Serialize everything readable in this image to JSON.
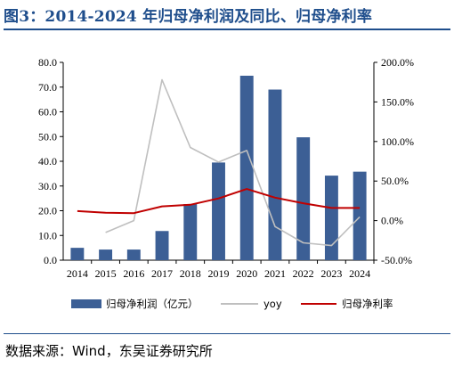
{
  "figure": {
    "title": "图3：2014-2024 年归母净利润及同比、归母净利率",
    "source": "数据来源：Wind，东吴证券研究所"
  },
  "colors": {
    "bar": "#3c5f95",
    "yoy": "#bfbfbf",
    "margin": "#c00000",
    "title": "#1f4e8c"
  },
  "chart_data": {
    "type": "bar",
    "categories": [
      "2014",
      "2015",
      "2016",
      "2017",
      "2018",
      "2019",
      "2020",
      "2021",
      "2022",
      "2023",
      "2024"
    ],
    "y_left": {
      "min": 0,
      "max": 80,
      "step": 10,
      "ticks": [
        "0.0",
        "10.0",
        "20.0",
        "30.0",
        "40.0",
        "50.0",
        "60.0",
        "70.0",
        "80.0"
      ]
    },
    "y_right": {
      "min": -50,
      "max": 200,
      "step": 50,
      "ticks": [
        "-50.0%",
        "0.0%",
        "50.0%",
        "100.0%",
        "150.0%",
        "200.0%"
      ]
    },
    "series": [
      {
        "name": "归母净利润（亿元）",
        "type": "bar",
        "axis": "left",
        "values": [
          5.0,
          4.3,
          4.3,
          11.8,
          22.7,
          39.5,
          74.6,
          69.0,
          49.7,
          34.2,
          35.8
        ]
      },
      {
        "name": "yoy",
        "type": "line",
        "axis": "right",
        "values": [
          null,
          -15.0,
          0.0,
          178.0,
          92.5,
          74.0,
          88.6,
          -7.5,
          -28.0,
          -31.5,
          4.7
        ]
      },
      {
        "name": "归母净利率",
        "type": "line",
        "axis": "right",
        "values": [
          12.0,
          10.0,
          9.5,
          18.0,
          20.0,
          28.0,
          40.0,
          29.0,
          22.0,
          16.0,
          16.0
        ]
      }
    ],
    "legend_position": "bottom",
    "grid": false
  }
}
